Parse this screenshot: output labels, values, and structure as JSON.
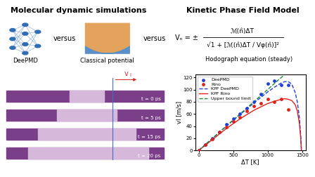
{
  "headings": {
    "left": "Molecular dynamic simulations",
    "right": "Kinetic Phase Field Model"
  },
  "comparison": {
    "items": [
      "DeePMD",
      "Classical potential",
      "Hodograph equation (steady)"
    ],
    "separator": "versus"
  },
  "equation": {
    "lhs": "Vₙ = ±",
    "numerator": "ℳ(n̂)ΔT",
    "denominator": "√1 + [ℳ(n̂)ΔT / Vφ(n̂)]²"
  },
  "snapshots": {
    "velocity_label": "v",
    "velocity_subscript": "I",
    "times": [
      "t = 0 ps",
      "t = 5 ps",
      "t = 15 ps",
      "t = 20 ps"
    ]
  },
  "chart_data": {
    "type": "line",
    "x_label": "ΔT [K]",
    "y_label": "vI [m/s]",
    "xlim": [
      -50,
      1550
    ],
    "xticks": [
      0,
      500,
      1000,
      1500
    ],
    "ylim": [
      0,
      125
    ],
    "yticks": [
      0,
      20,
      40,
      60,
      80,
      100,
      120
    ],
    "grid": false,
    "legend": "upper left",
    "series": [
      {
        "name": "DeePMD",
        "type": "scatter",
        "color": "#1f3fd6",
        "marker": "o",
        "x": [
          0,
          100,
          200,
          300,
          400,
          500,
          600,
          700,
          800,
          900,
          1000,
          1100,
          1200,
          1300
        ],
        "values": [
          0,
          10,
          20,
          30,
          43,
          52,
          60,
          70,
          80,
          92,
          110,
          115,
          107,
          108
        ]
      },
      {
        "name": "Rino",
        "type": "scatter",
        "color": "#e0201b",
        "marker": "o",
        "x": [
          0,
          100,
          200,
          300,
          400,
          500,
          600,
          700,
          800,
          900,
          1000,
          1100,
          1200,
          1300
        ],
        "values": [
          0,
          10,
          19,
          30,
          38,
          47,
          55,
          65,
          73,
          78,
          84,
          80,
          84,
          67
        ]
      },
      {
        "name": "KPF DeePMD",
        "type": "line",
        "color": "#1f3fd6",
        "line_style": "dashed",
        "x": [
          0,
          200,
          400,
          600,
          800,
          1000,
          1100,
          1200,
          1250,
          1300,
          1350,
          1400,
          1430,
          1460,
          1480,
          1490
        ],
        "values": [
          0,
          20,
          40,
          59,
          78,
          96,
          104,
          111,
          113,
          113,
          109,
          95,
          80,
          55,
          25,
          0
        ]
      },
      {
        "name": "KPF Rino",
        "type": "line",
        "color": "#e0201b",
        "line_style": "solid",
        "x": [
          0,
          200,
          400,
          600,
          800,
          1000,
          1100,
          1200,
          1250,
          1300,
          1350,
          1400,
          1430,
          1460,
          1480,
          1490
        ],
        "values": [
          0,
          18,
          36,
          52,
          66,
          77,
          81,
          84,
          85,
          84,
          82,
          75,
          65,
          45,
          20,
          0
        ]
      },
      {
        "name": "Upper bound limit",
        "type": "line",
        "color": "#1a8a3a",
        "line_style": "dashed",
        "x": [
          0,
          1250
        ],
        "values": [
          0,
          125
        ]
      }
    ]
  }
}
